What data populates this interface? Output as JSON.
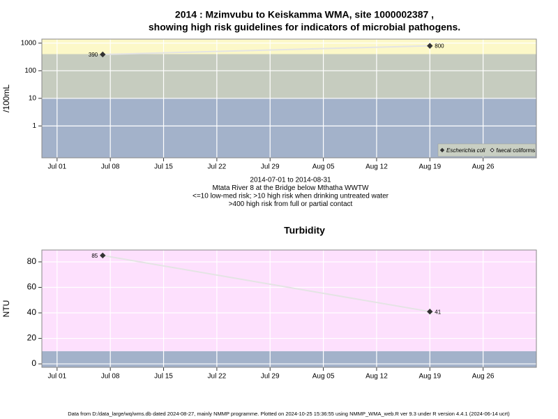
{
  "chart_data": [
    {
      "type": "line",
      "title": [
        "2014 : Mzimvubu to Keiskamma WMA, site 1000002387 ,",
        "showing high risk guidelines for indicators of microbial pathogens."
      ],
      "ylabel": "/100mL",
      "ylog": true,
      "ylim": [
        0.07,
        1400
      ],
      "yticks": [
        1,
        10,
        100,
        1000
      ],
      "xlim": [
        "Jun 29",
        "Sep 02"
      ],
      "xticks": [
        "Jul 01",
        "Jul 08",
        "Jul 15",
        "Jul 22",
        "Jul 29",
        "Aug 05",
        "Aug 12",
        "Aug 19",
        "Aug 26"
      ],
      "grid": true,
      "bands": [
        {
          "from": 0.07,
          "to": 10,
          "color": "#a3b2ca"
        },
        {
          "from": 10,
          "to": 400,
          "color": "#c6ccbf"
        },
        {
          "from": 400,
          "to": 1400,
          "color": "#fcf8c8"
        }
      ],
      "x": [
        "Jul 07",
        "Aug 19"
      ],
      "series": [
        {
          "name": "Escherichia coli",
          "color": "#333333",
          "italic": true,
          "filled": true,
          "values": [
            390,
            800
          ]
        },
        {
          "name": "faecal coliforms",
          "color": "#333333",
          "italic": false,
          "filled": false,
          "values": [
            null,
            null
          ]
        }
      ],
      "line_color": "#e4e4e4",
      "legend": "bottom-right",
      "notes": [
        "2014-07-01 to 2014-08-31",
        "Mtata River 8 at the Bridge below Mthatha WWTW",
        "<=10 low-med risk; >10 high risk when drinking untreated water",
        ">400 high risk from full or partial contact"
      ]
    },
    {
      "type": "line",
      "title": [
        "Turbidity"
      ],
      "ylabel": "NTU",
      "ylog": false,
      "ylim": [
        -2.7,
        89.3
      ],
      "yticks": [
        0,
        20,
        40,
        60,
        80
      ],
      "xlim": [
        "Jun 29",
        "Sep 02"
      ],
      "xticks": [
        "Jul 01",
        "Jul 08",
        "Jul 15",
        "Jul 22",
        "Jul 29",
        "Aug 05",
        "Aug 12",
        "Aug 19",
        "Aug 26"
      ],
      "grid": true,
      "bands": [
        {
          "from": -2.7,
          "to": 10,
          "color": "#a3b2ca"
        },
        {
          "from": 10,
          "to": 89.3,
          "color": "#fde0fd"
        }
      ],
      "x": [
        "Jul 07",
        "Aug 19"
      ],
      "series": [
        {
          "color": "#333333",
          "filled": true,
          "values": [
            85,
            41
          ]
        }
      ],
      "line_color": "#e4e4e4"
    }
  ],
  "footer": "Data from D:/data_large/wq/wms.db dated 2024-08-27, mainly NMMP programme. Plotted on 2024-10-25 15:36:55 using NMMP_WMA_web.R ver 9.3 under R version 4.4.1 (2024-06-14 ucrt)"
}
